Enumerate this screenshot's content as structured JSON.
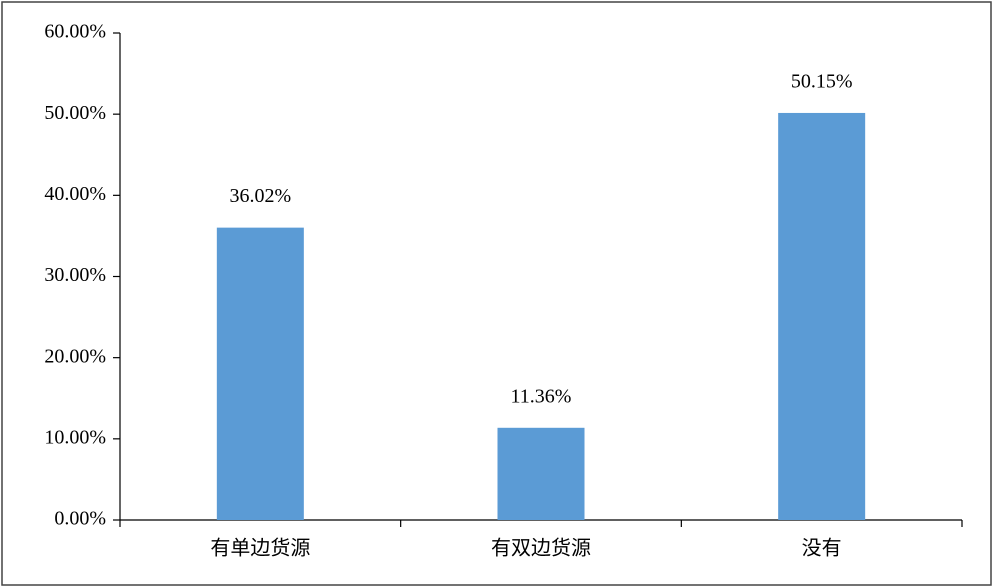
{
  "chart_data": {
    "type": "bar",
    "categories": [
      "有单边货源",
      "有双边货源",
      "没有"
    ],
    "values": [
      36.02,
      11.36,
      50.15
    ],
    "value_labels": [
      "36.02%",
      "11.36%",
      "50.15%"
    ],
    "color": "#5b9bd5",
    "ylim": [
      0,
      60
    ],
    "yticks": [
      {
        "value": 0,
        "label": "0.00%"
      },
      {
        "value": 10,
        "label": "10.00%"
      },
      {
        "value": 20,
        "label": "20.00%"
      },
      {
        "value": 30,
        "label": "30.00%"
      },
      {
        "value": 40,
        "label": "40.00%"
      },
      {
        "value": 50,
        "label": "50.00%"
      },
      {
        "value": 60,
        "label": "60.00%"
      }
    ]
  }
}
